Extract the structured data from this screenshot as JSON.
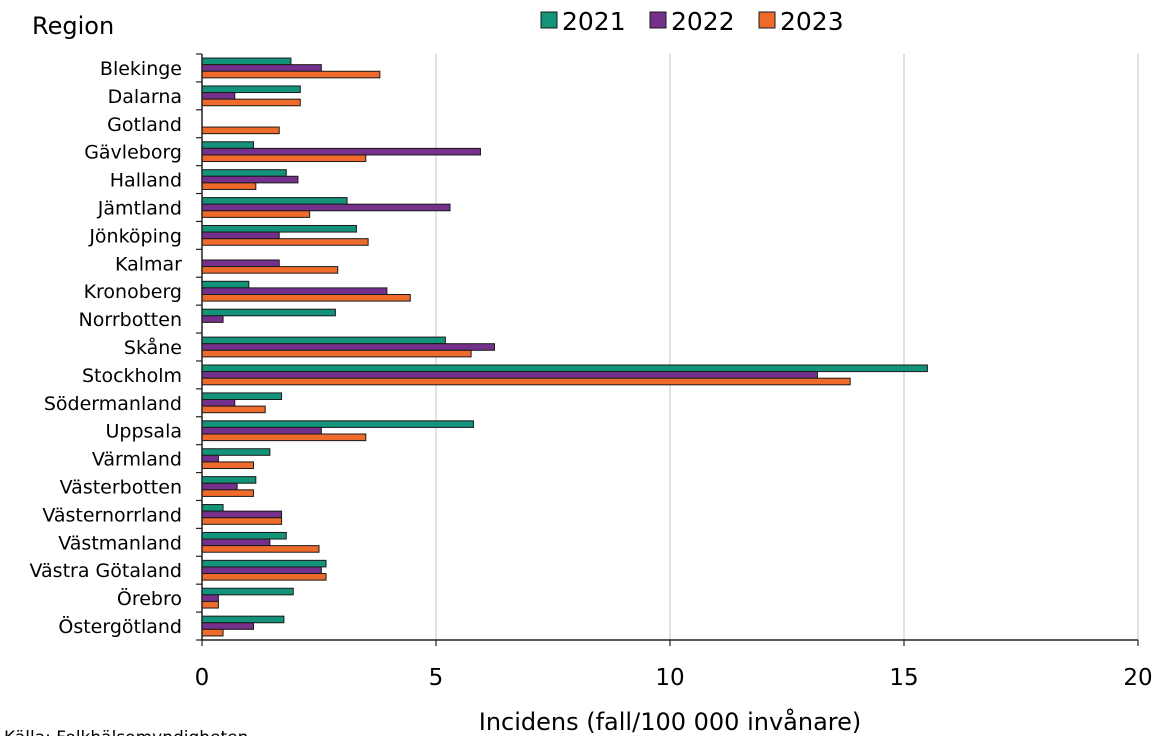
{
  "chart_data": {
    "type": "bar",
    "orientation": "horizontal",
    "category_axis_title": "Region",
    "xlabel": "Incidens (fall/100 000 invånare)",
    "xlim": [
      0,
      20
    ],
    "xticks": [
      0,
      5,
      10,
      15,
      20
    ],
    "grid": true,
    "legend_position": "top",
    "source": "Källa: Folkhälsomyndigheten",
    "categories": [
      "Blekinge",
      "Dalarna",
      "Gotland",
      "Gävleborg",
      "Halland",
      "Jämtland",
      "Jönköping",
      "Kalmar",
      "Kronoberg",
      "Norrbotten",
      "Skåne",
      "Stockholm",
      "Södermanland",
      "Uppsala",
      "Värmland",
      "Västerbotten",
      "Västernorrland",
      "Västmanland",
      "Västra Götaland",
      "Örebro",
      "Östergötland"
    ],
    "series": [
      {
        "name": "2021",
        "color": "#12937a",
        "values": [
          1.9,
          2.1,
          0,
          1.1,
          1.8,
          3.1,
          3.3,
          0,
          1.0,
          2.85,
          5.2,
          15.5,
          1.7,
          5.8,
          1.45,
          1.15,
          0.45,
          1.8,
          2.65,
          1.95,
          1.75
        ]
      },
      {
        "name": "2022",
        "color": "#74308b",
        "values": [
          2.55,
          0.7,
          0,
          5.95,
          2.05,
          5.3,
          1.65,
          1.65,
          3.95,
          0.45,
          6.25,
          13.15,
          0.7,
          2.55,
          0.35,
          0.75,
          1.7,
          1.45,
          2.55,
          0.35,
          1.1
        ]
      },
      {
        "name": "2023",
        "color": "#ee6b2b",
        "values": [
          3.8,
          2.1,
          1.65,
          3.5,
          1.15,
          2.3,
          3.55,
          2.9,
          4.45,
          0,
          5.75,
          13.85,
          1.35,
          3.5,
          1.1,
          1.1,
          1.7,
          2.5,
          2.65,
          0.35,
          0.45
        ]
      }
    ]
  }
}
